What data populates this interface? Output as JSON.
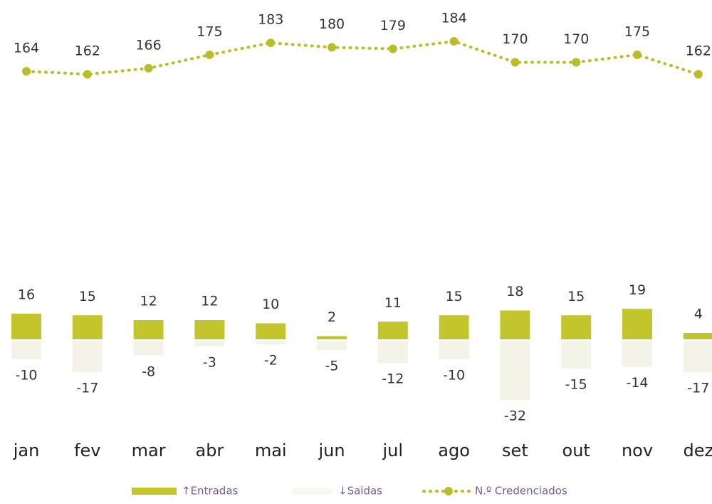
{
  "chart_data": {
    "type": "bar",
    "categories": [
      "jan",
      "fev",
      "mar",
      "abr",
      "mai",
      "jun",
      "jul",
      "ago",
      "set",
      "out",
      "nov",
      "dez"
    ],
    "series": [
      {
        "name": "↑Entradas",
        "type": "bar",
        "color": "#c2c52b",
        "values": [
          16,
          15,
          12,
          12,
          10,
          2,
          11,
          15,
          18,
          15,
          19,
          4
        ]
      },
      {
        "name": "↓Saidas",
        "type": "bar",
        "color": "#ecebd9",
        "values": [
          -10,
          -17,
          -8,
          -3,
          -2,
          -5,
          -12,
          -10,
          -32,
          -15,
          -14,
          -17
        ]
      },
      {
        "name": "N.º Credenciados",
        "type": "line",
        "color": "#b9bd2a",
        "values": [
          164,
          162,
          166,
          175,
          183,
          180,
          179,
          184,
          170,
          170,
          175,
          162
        ]
      }
    ]
  }
}
